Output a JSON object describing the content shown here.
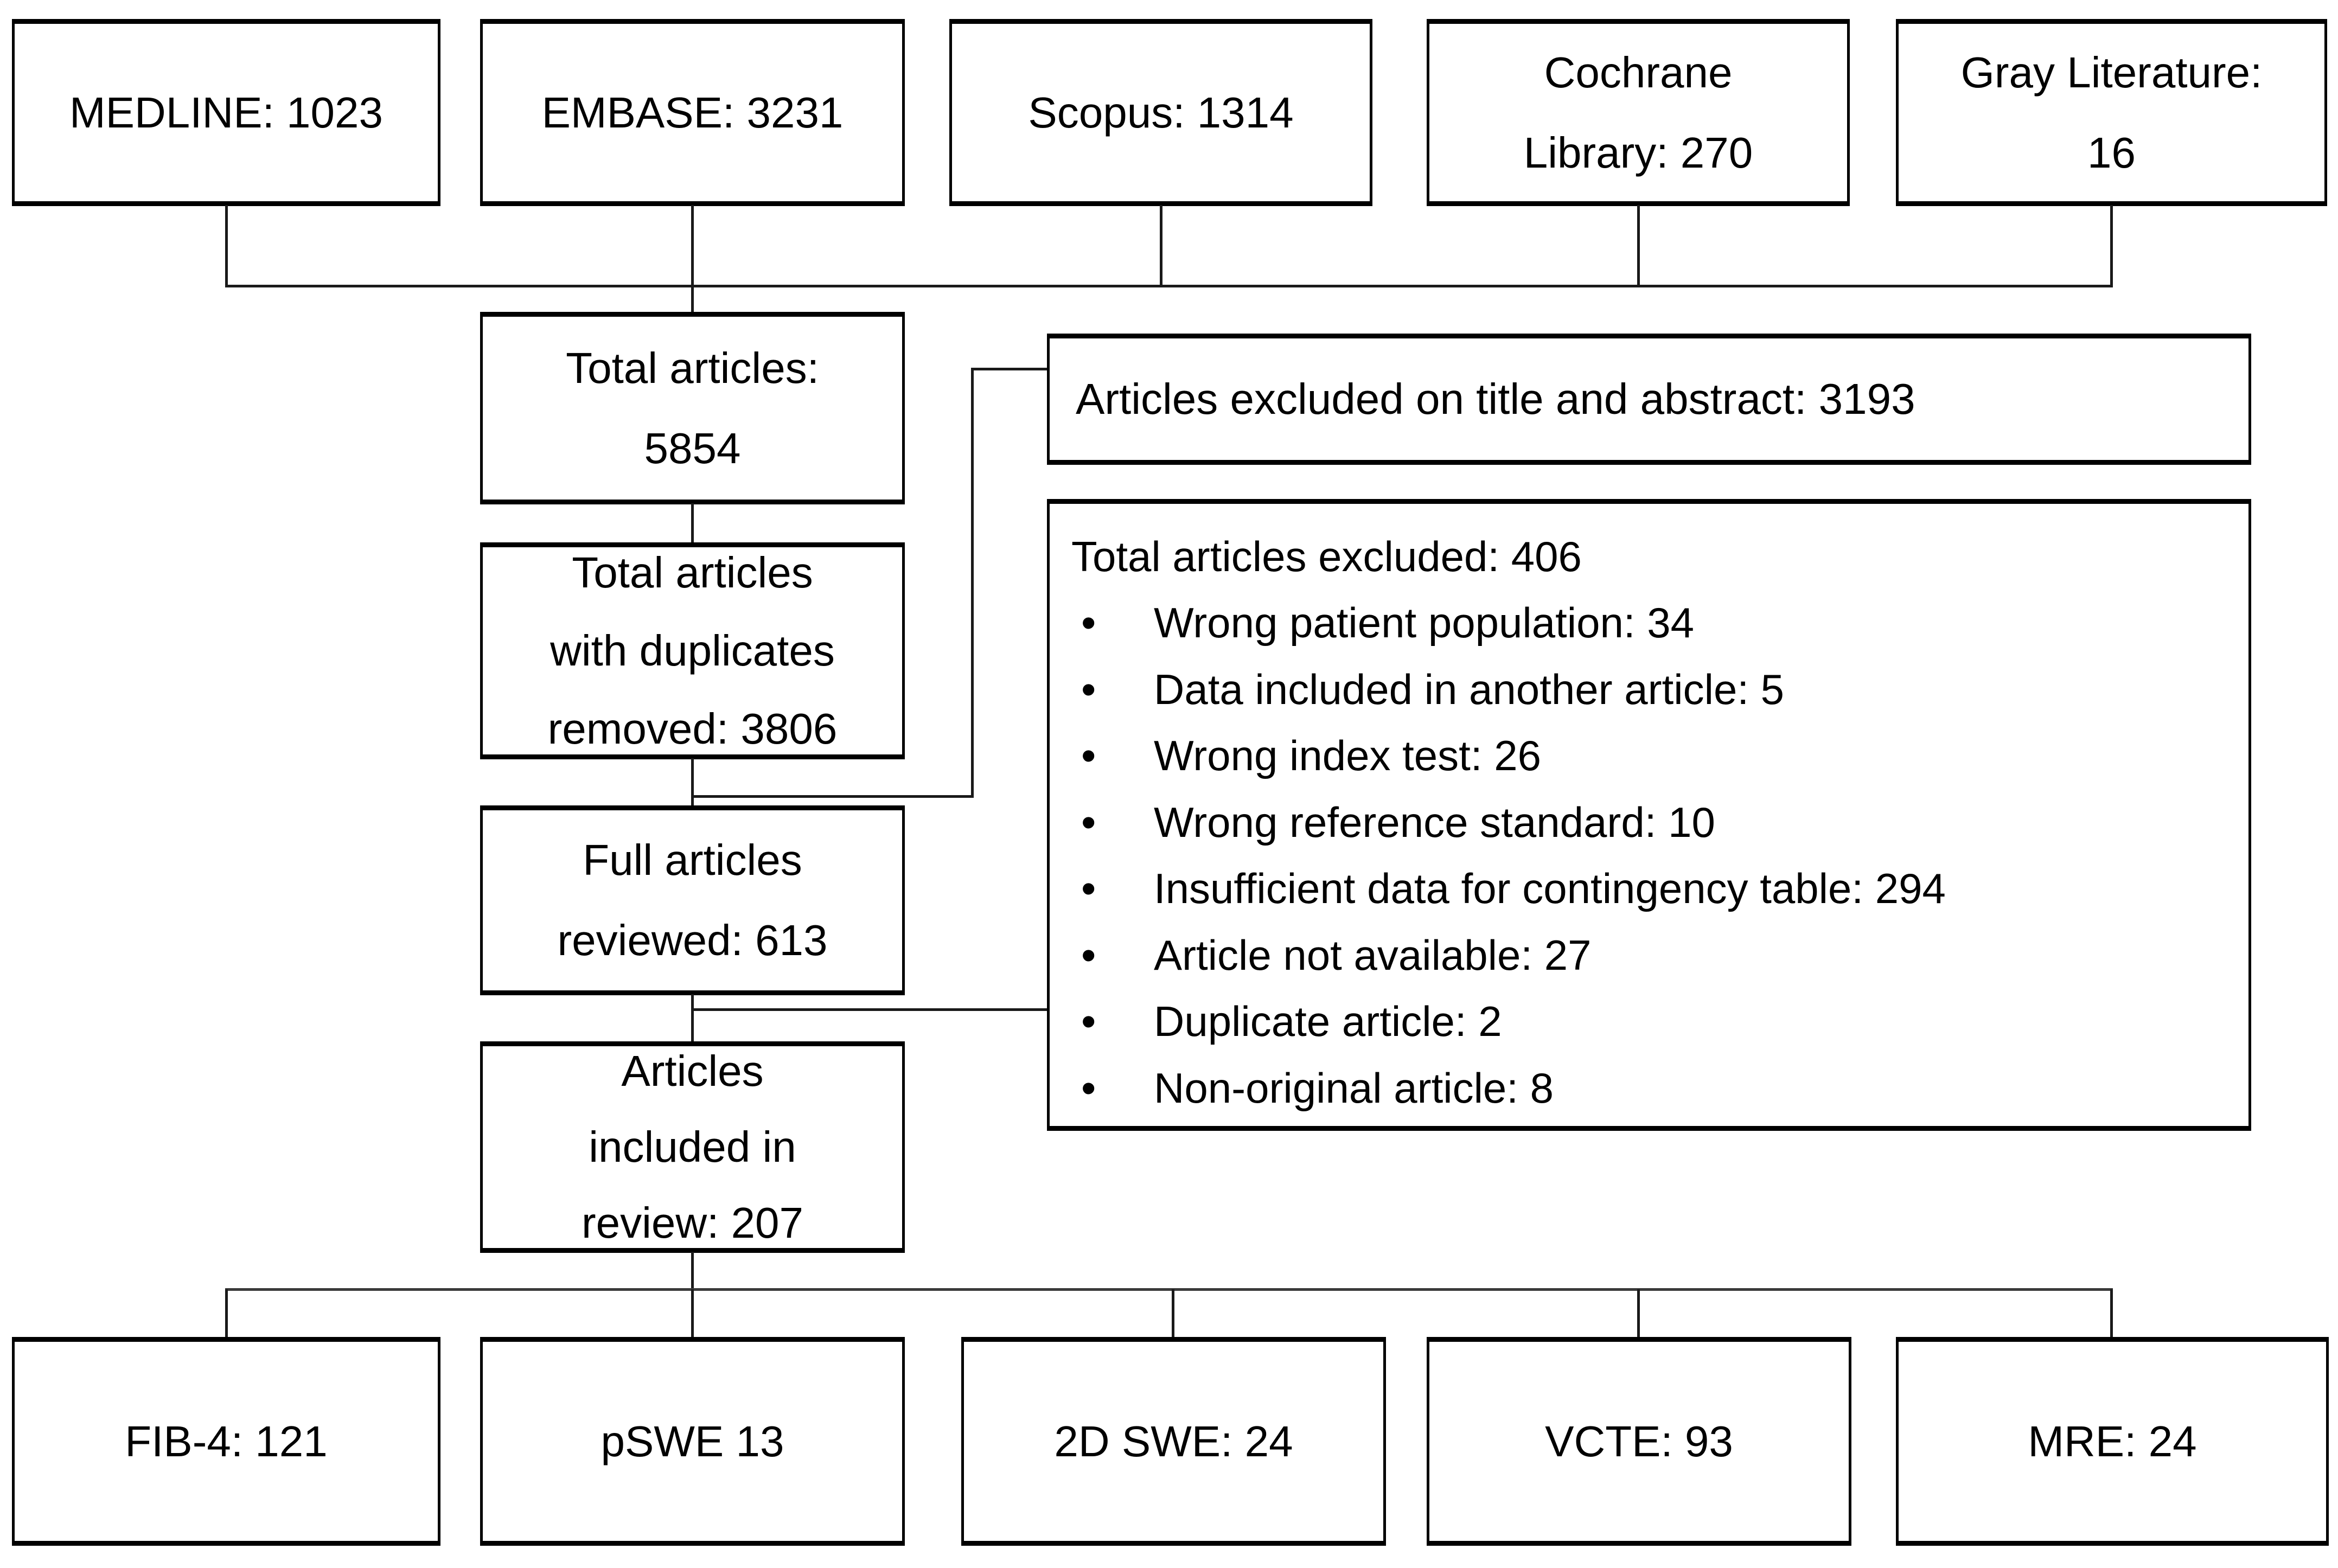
{
  "diagram": {
    "type": "prisma-flow",
    "colors": {
      "background": "#ffffff",
      "border": "#000000",
      "text": "#000000"
    },
    "sources": [
      {
        "label": "MEDLINE: 1023"
      },
      {
        "label": "EMBASE: 3231"
      },
      {
        "label": "Scopus: 1314"
      },
      {
        "label": "Cochrane\nLibrary: 270"
      },
      {
        "label": "Gray Literature:\n16"
      }
    ],
    "flow": {
      "total": "Total articles:\n5854",
      "duplicates_removed": "Total articles\nwith duplicates\nremoved: 3806",
      "full_reviewed": "Full articles\nreviewed: 613",
      "included": "Articles\nincluded in\nreview: 207"
    },
    "exclusions": {
      "title_abstract": "Articles excluded on title and abstract: 3193",
      "full_text": {
        "title": "Total articles excluded: 406",
        "items": [
          "Wrong patient population: 34",
          "Data included in another article: 5",
          "Wrong index test: 26",
          "Wrong reference standard: 10",
          "Insufficient data for contingency table: 294",
          "Article not available: 27",
          "Duplicate article: 2",
          "Non-original article: 8"
        ]
      }
    },
    "outcomes": [
      {
        "label": "FIB-4: 121"
      },
      {
        "label": "pSWE 13"
      },
      {
        "label": "2D SWE: 24"
      },
      {
        "label": "VCTE: 93"
      },
      {
        "label": "MRE: 24"
      }
    ]
  }
}
